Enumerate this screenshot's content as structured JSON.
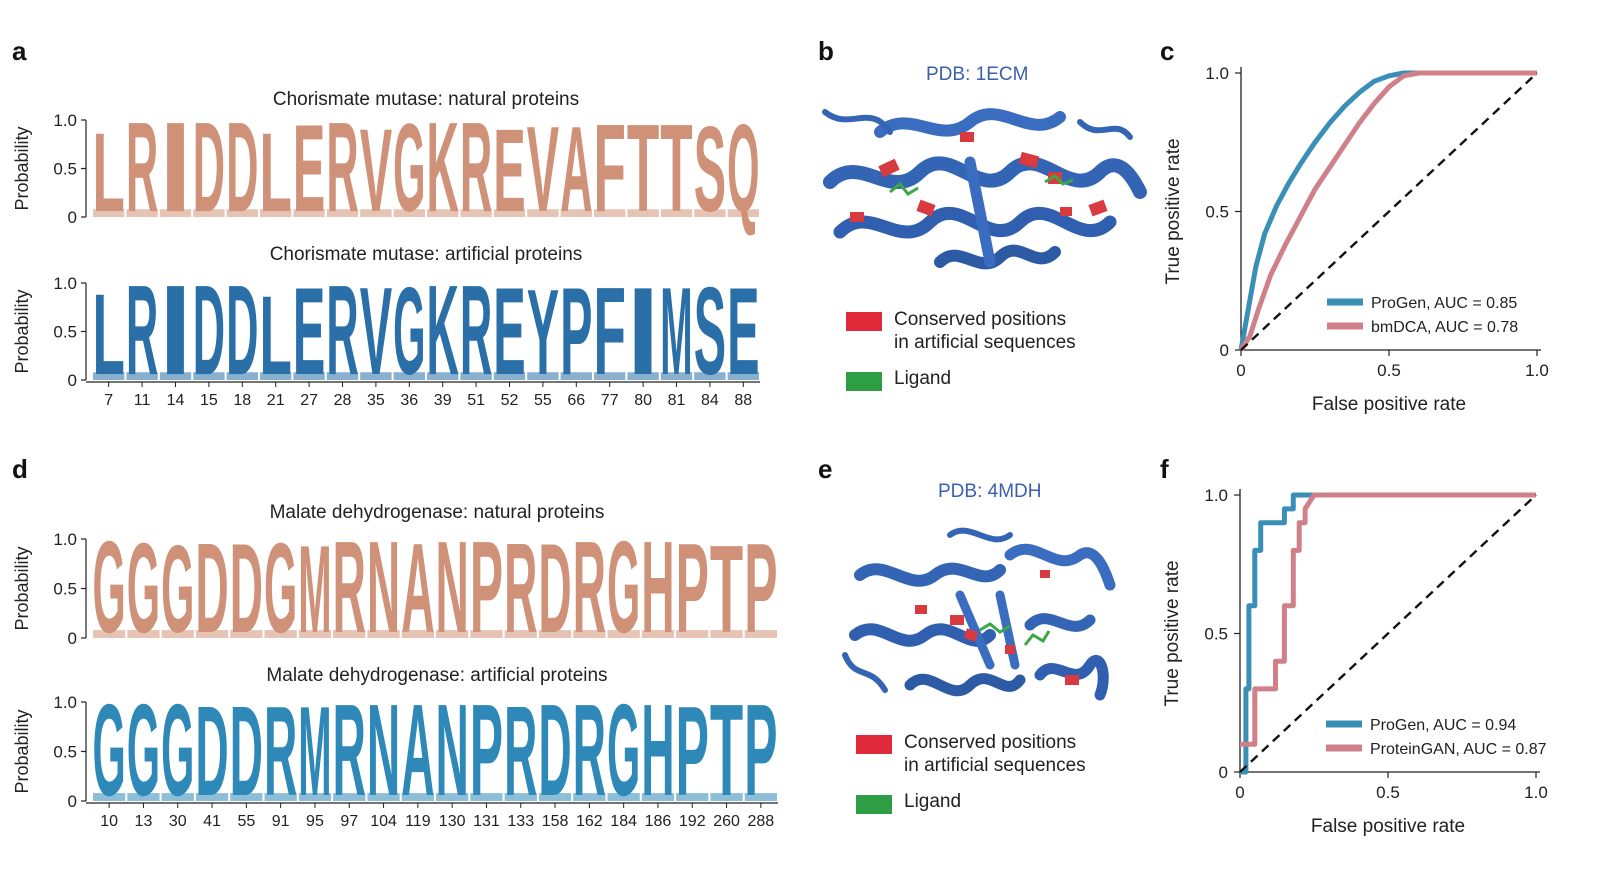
{
  "panels": {
    "a": {
      "letter": "a",
      "natural": {
        "title": "Chorismate mutase: natural proteins",
        "ylabel": "Probability",
        "yticks": [
          "0",
          "0.5",
          "1.0"
        ],
        "color": "#cf9178",
        "letters": [
          "L",
          "R",
          "I",
          "D",
          "D",
          "L",
          "E",
          "R",
          "V",
          "G",
          "K",
          "R",
          "E",
          "V",
          "A",
          "F",
          "T",
          "T",
          "S",
          "Q"
        ],
        "fill": [
          0.88,
          1.0,
          1.0,
          1.0,
          1.0,
          0.88,
          0.97,
          1.0,
          0.92,
          0.98,
          1.0,
          1.0,
          0.92,
          0.95,
          0.95,
          0.98,
          0.97,
          0.97,
          0.95,
          0.97
        ]
      },
      "artificial": {
        "title": "Chorismate mutase: artificial proteins",
        "ylabel": "Probability",
        "yticks": [
          "0",
          "0.5",
          "1.0"
        ],
        "color": "#2a6fa8",
        "letters": [
          "L",
          "R",
          "I",
          "D",
          "D",
          "L",
          "E",
          "R",
          "V",
          "G",
          "K",
          "R",
          "E",
          "Y",
          "P",
          "F",
          "I",
          "M",
          "S",
          "E"
        ],
        "fill": [
          0.9,
          1.0,
          1.0,
          1.0,
          1.0,
          0.88,
          0.97,
          1.0,
          0.97,
          0.97,
          1.0,
          1.0,
          0.97,
          0.95,
          0.97,
          0.97,
          0.97,
          0.97,
          0.97,
          0.97
        ]
      },
      "positions": [
        "7",
        "11",
        "14",
        "15",
        "18",
        "21",
        "27",
        "28",
        "35",
        "36",
        "39",
        "51",
        "52",
        "55",
        "66",
        "77",
        "80",
        "81",
        "84",
        "88"
      ]
    },
    "b": {
      "letter": "b",
      "pdb": "PDB: 1ECM",
      "legend": [
        {
          "label": "Conserved positions\nin artificial sequences",
          "color": "#e02a3a"
        },
        {
          "label": "Ligand",
          "color": "#2e9e45"
        }
      ]
    },
    "c": {
      "letter": "c",
      "xlabel": "False positive rate",
      "ylabel": "True positive rate"
    },
    "d": {
      "letter": "d",
      "natural": {
        "title": "Malate dehydrogenase: natural proteins",
        "ylabel": "Probability",
        "yticks": [
          "0",
          "0.5",
          "1.0"
        ],
        "color": "#cf9178",
        "letters": [
          "G",
          "G",
          "G",
          "D",
          "D",
          "G",
          "M",
          "R",
          "N",
          "A",
          "N",
          "P",
          "R",
          "D",
          "R",
          "G",
          "H",
          "P",
          "T",
          "P"
        ],
        "fill": [
          1.0,
          0.98,
          0.95,
          0.98,
          0.97,
          0.98,
          0.95,
          1.0,
          1.0,
          0.97,
          1.0,
          1.0,
          0.98,
          0.97,
          1.0,
          1.0,
          1.0,
          0.97,
          0.95,
          0.97
        ]
      },
      "artificial": {
        "title": "Malate dehydrogenase: artificial proteins",
        "ylabel": "Probability",
        "yticks": [
          "0",
          "0.5",
          "1.0"
        ],
        "color": "#2e88b8",
        "letters": [
          "G",
          "G",
          "G",
          "D",
          "D",
          "R",
          "M",
          "R",
          "N",
          "A",
          "N",
          "P",
          "R",
          "D",
          "R",
          "G",
          "H",
          "P",
          "T",
          "P"
        ],
        "fill": [
          1.0,
          1.0,
          1.0,
          0.98,
          0.98,
          0.97,
          0.97,
          1.0,
          1.0,
          1.0,
          1.0,
          1.0,
          0.98,
          1.0,
          1.0,
          1.0,
          1.0,
          0.97,
          1.0,
          1.0
        ]
      },
      "positions": [
        "10",
        "13",
        "30",
        "41",
        "55",
        "91",
        "95",
        "97",
        "104",
        "119",
        "130",
        "131",
        "133",
        "158",
        "162",
        "184",
        "186",
        "192",
        "260",
        "288"
      ]
    },
    "e": {
      "letter": "e",
      "pdb": "PDB: 4MDH",
      "legend": [
        {
          "label": "Conserved positions\nin artificial sequences",
          "color": "#e02a3a"
        },
        {
          "label": "Ligand",
          "color": "#2e9e45"
        }
      ]
    },
    "f": {
      "letter": "f",
      "xlabel": "False positive rate",
      "ylabel": "True positive rate"
    }
  },
  "chart_data": [
    {
      "type": "line",
      "panel": "c",
      "xlabel": "False positive rate",
      "ylabel": "True positive rate",
      "xlim": [
        0,
        1
      ],
      "ylim": [
        0,
        1
      ],
      "xticks": [
        "0",
        "0.5",
        "1.0"
      ],
      "yticks": [
        "0",
        "0.5",
        "1.0"
      ],
      "legend_position": "bottom-right",
      "series": [
        {
          "name": "ProGen, AUC = 0.85",
          "color": "#3a8fb7",
          "x": [
            0,
            0.02,
            0.05,
            0.08,
            0.12,
            0.16,
            0.2,
            0.25,
            0.3,
            0.35,
            0.4,
            0.45,
            0.5,
            0.55,
            0.6,
            0.7,
            0.8,
            0.9,
            1.0
          ],
          "y": [
            0,
            0.12,
            0.3,
            0.42,
            0.52,
            0.6,
            0.67,
            0.75,
            0.82,
            0.88,
            0.93,
            0.97,
            0.99,
            1.0,
            1.0,
            1.0,
            1.0,
            1.0,
            1.0
          ]
        },
        {
          "name": "bmDCA, AUC = 0.78",
          "color": "#d08088",
          "x": [
            0,
            0.03,
            0.06,
            0.1,
            0.15,
            0.2,
            0.25,
            0.3,
            0.35,
            0.4,
            0.45,
            0.5,
            0.55,
            0.6,
            0.7,
            0.8,
            0.9,
            1.0
          ],
          "y": [
            0,
            0.05,
            0.15,
            0.27,
            0.38,
            0.48,
            0.58,
            0.66,
            0.74,
            0.82,
            0.89,
            0.95,
            0.99,
            1.0,
            1.0,
            1.0,
            1.0,
            1.0
          ]
        },
        {
          "name": "",
          "color": "#111111",
          "dashed": true,
          "x": [
            0,
            1
          ],
          "y": [
            0,
            1
          ]
        }
      ]
    },
    {
      "type": "line",
      "panel": "f",
      "xlabel": "False positive rate",
      "ylabel": "True positive rate",
      "xlim": [
        0,
        1
      ],
      "ylim": [
        0,
        1
      ],
      "xticks": [
        "0",
        "0.5",
        "1.0"
      ],
      "yticks": [
        "0",
        "0.5",
        "1.0"
      ],
      "legend_position": "bottom-right",
      "series": [
        {
          "name": "ProGen, AUC = 0.94",
          "color": "#3a8fb7",
          "x": [
            0,
            0.02,
            0.02,
            0.03,
            0.03,
            0.05,
            0.05,
            0.07,
            0.07,
            0.1,
            0.1,
            0.15,
            0.15,
            0.18,
            0.18,
            0.3,
            1.0
          ],
          "y": [
            0,
            0,
            0.3,
            0.3,
            0.6,
            0.6,
            0.8,
            0.8,
            0.9,
            0.9,
            0.9,
            0.9,
            0.95,
            0.95,
            1.0,
            1.0,
            1.0
          ]
        },
        {
          "name": "ProteinGAN, AUC = 0.87",
          "color": "#d08088",
          "x": [
            0,
            0.05,
            0.05,
            0.08,
            0.08,
            0.12,
            0.12,
            0.15,
            0.15,
            0.18,
            0.18,
            0.2,
            0.2,
            0.22,
            0.22,
            0.25,
            1.0
          ],
          "y": [
            0.1,
            0.1,
            0.3,
            0.3,
            0.3,
            0.3,
            0.4,
            0.4,
            0.6,
            0.6,
            0.8,
            0.8,
            0.9,
            0.9,
            0.95,
            1.0,
            1.0
          ]
        },
        {
          "name": "",
          "color": "#111111",
          "dashed": true,
          "x": [
            0,
            1
          ],
          "y": [
            0,
            1
          ]
        }
      ]
    }
  ]
}
